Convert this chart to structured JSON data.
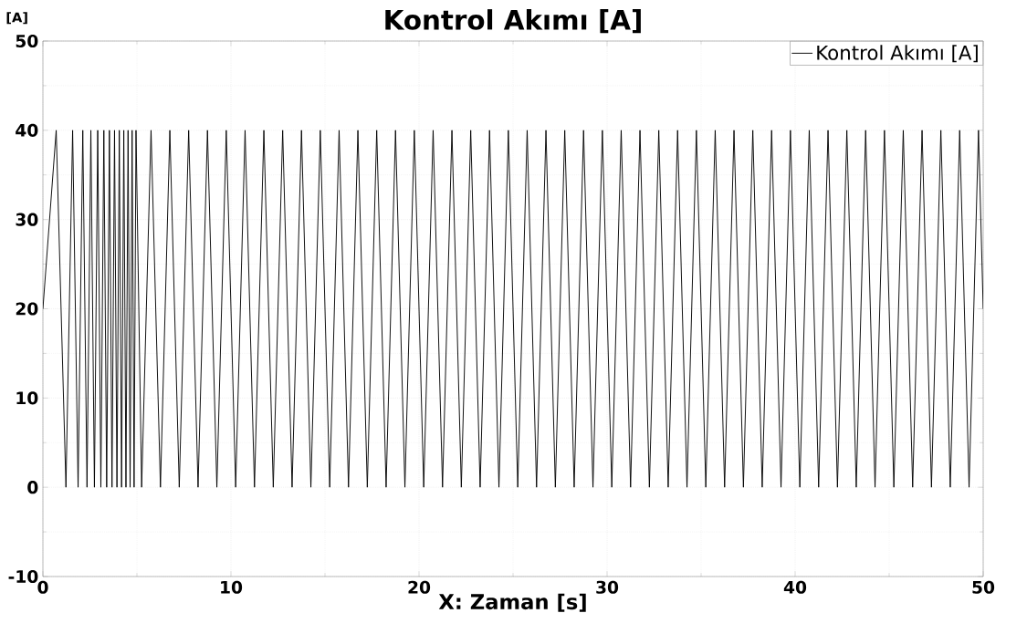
{
  "chart_data": {
    "type": "line",
    "title": "Kontrol Akımı [A]",
    "xlabel": "X: Zaman [s]",
    "ylabel": "[A]",
    "xlim": [
      0,
      50
    ],
    "ylim": [
      -10,
      50
    ],
    "xticks": [
      0,
      10,
      20,
      30,
      40,
      50
    ],
    "yticks": [
      -10,
      0,
      10,
      20,
      30,
      40,
      50
    ],
    "grid": true,
    "legend": "top right",
    "line_style": "solid",
    "series": [
      {
        "name": "Kontrol Akımı [A]",
        "color": "#000000",
        "x": [
          0,
          0.707,
          1.225,
          1.581,
          1.871,
          2.121,
          2.345,
          2.55,
          2.739,
          2.915,
          3.082,
          3.24,
          3.391,
          3.536,
          3.674,
          3.808,
          3.937,
          4.062,
          4.183,
          4.301,
          4.416,
          4.528,
          4.637,
          4.743,
          4.848,
          4.95,
          5.25,
          5.75,
          6.25,
          6.75,
          7.25,
          7.75,
          8.25,
          8.75,
          9.25,
          9.75,
          10.25,
          10.75,
          11.25,
          11.75,
          12.25,
          12.75,
          13.25,
          13.75,
          14.25,
          14.75,
          15.25,
          15.75,
          16.25,
          16.75,
          17.25,
          17.75,
          18.25,
          18.75,
          19.25,
          19.75,
          20.25,
          20.75,
          21.25,
          21.75,
          22.25,
          22.75,
          23.25,
          23.75,
          24.25,
          24.75,
          25.25,
          25.75,
          26.25,
          26.75,
          27.25,
          27.75,
          28.25,
          28.75,
          29.25,
          29.75,
          30.25,
          30.75,
          31.25,
          31.75,
          32.25,
          32.75,
          33.25,
          33.75,
          34.25,
          34.75,
          35.25,
          35.75,
          36.25,
          36.75,
          37.25,
          37.75,
          38.25,
          38.75,
          39.25,
          39.75,
          40.25,
          40.75,
          41.25,
          41.75,
          42.25,
          42.75,
          43.25,
          43.75,
          44.25,
          44.75,
          45.25,
          45.75,
          46.25,
          46.75,
          47.25,
          47.75,
          48.25,
          48.75,
          49.25,
          49.75,
          50
        ],
        "values": [
          20,
          40,
          0,
          40,
          0,
          40,
          0,
          40,
          0,
          40,
          0,
          40,
          0,
          40,
          0,
          40,
          0,
          40,
          0,
          40,
          0,
          40,
          0,
          40,
          0,
          40,
          0,
          40,
          0,
          40,
          0,
          40,
          0,
          40,
          0,
          40,
          0,
          40,
          0,
          40,
          0,
          40,
          0,
          40,
          0,
          40,
          0,
          40,
          0,
          40,
          0,
          40,
          0,
          40,
          0,
          40,
          0,
          40,
          0,
          40,
          0,
          40,
          0,
          40,
          0,
          40,
          0,
          40,
          0,
          40,
          0,
          40,
          0,
          40,
          0,
          40,
          0,
          40,
          0,
          40,
          0,
          40,
          0,
          40,
          0,
          40,
          0,
          40,
          0,
          40,
          0,
          40,
          0,
          40,
          0,
          40,
          0,
          40,
          0,
          40,
          0,
          40,
          0,
          40,
          0,
          40,
          0,
          40,
          0,
          40,
          0,
          40,
          0,
          40,
          0,
          40,
          20
        ]
      }
    ]
  }
}
